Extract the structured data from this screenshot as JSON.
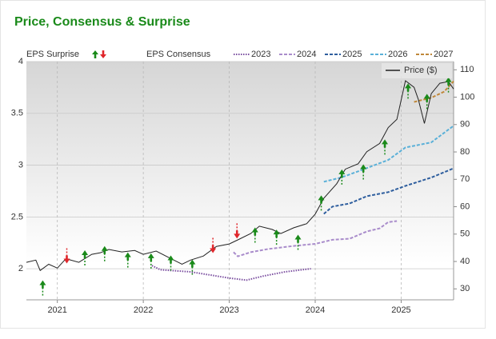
{
  "chart_data": {
    "type": "line",
    "title": "Price, Consensus & Surprise",
    "xlim": [
      2020.64,
      2025.61
    ],
    "xticks": [
      {
        "value": 2021,
        "label": "2021"
      },
      {
        "value": 2022,
        "label": "2022"
      },
      {
        "value": 2023,
        "label": "2023"
      },
      {
        "value": 2024,
        "label": "2024"
      },
      {
        "value": 2025,
        "label": "2025"
      }
    ],
    "ylim": [
      1.7,
      4.0
    ],
    "yticks": [
      2,
      2.5,
      3,
      3.5,
      4
    ],
    "y2lim": [
      26,
      113
    ],
    "y2ticks": [
      30,
      40,
      50,
      60,
      70,
      80,
      90,
      100,
      110
    ],
    "grid": true,
    "series": [
      {
        "name": "Price ($)",
        "color": "#222222",
        "axis": "y2",
        "x": [
          2020.64,
          2020.75,
          2020.8,
          2020.9,
          2021.0,
          2021.1,
          2021.25,
          2021.4,
          2021.5,
          2021.6,
          2021.75,
          2021.9,
          2022.0,
          2022.15,
          2022.3,
          2022.45,
          2022.55,
          2022.7,
          2022.85,
          2023.0,
          2023.1,
          2023.25,
          2023.35,
          2023.5,
          2023.6,
          2023.75,
          2023.9,
          2024.0,
          2024.1,
          2024.25,
          2024.35,
          2024.5,
          2024.6,
          2024.75,
          2024.85,
          2024.95,
          2025.05,
          2025.15,
          2025.2,
          2025.27,
          2025.35,
          2025.45,
          2025.55,
          2025.61
        ],
        "values": [
          39.7,
          40.5,
          36.7,
          39.0,
          37.6,
          41.0,
          39.7,
          42.6,
          43.2,
          44.4,
          43.5,
          44.0,
          42.6,
          43.8,
          41.4,
          39.0,
          40.5,
          42.0,
          45.5,
          46.4,
          47.9,
          50.2,
          52.9,
          51.7,
          50.2,
          52.3,
          53.8,
          57.3,
          63.1,
          68.4,
          73.7,
          75.7,
          80.1,
          83.1,
          88.9,
          91.9,
          106.0,
          103.6,
          99.2,
          90.4,
          101.3,
          105.1,
          105.7,
          103.0
        ]
      }
    ],
    "consensus": {
      "name": "EPS Consensus",
      "series": [
        {
          "name": "2023",
          "color": "#7b4fa0",
          "style": "dotted",
          "x": [
            2022.1,
            2022.2,
            2022.55,
            2023.0,
            2023.2,
            2023.4,
            2023.65,
            2023.95
          ],
          "values": [
            2.03,
            1.99,
            1.97,
            1.91,
            1.89,
            1.93,
            1.97,
            2.0
          ]
        },
        {
          "name": "2024",
          "color": "#a98ccb",
          "style": "dashed",
          "x": [
            2023.05,
            2023.1,
            2023.25,
            2023.45,
            2023.75,
            2024.0,
            2024.2,
            2024.4,
            2024.6,
            2024.75,
            2024.85,
            2024.95
          ],
          "values": [
            2.16,
            2.12,
            2.16,
            2.19,
            2.22,
            2.24,
            2.28,
            2.29,
            2.36,
            2.39,
            2.45,
            2.46
          ]
        },
        {
          "name": "2025",
          "color": "#2e5e9e",
          "style": "dashed",
          "x": [
            2024.1,
            2024.2,
            2024.4,
            2024.6,
            2024.85,
            2025.05,
            2025.35,
            2025.61
          ],
          "values": [
            2.53,
            2.6,
            2.63,
            2.7,
            2.74,
            2.8,
            2.88,
            2.97
          ]
        },
        {
          "name": "2026",
          "color": "#5ab0d8",
          "style": "dashed",
          "x": [
            2024.1,
            2024.3,
            2024.5,
            2024.85,
            2025.05,
            2025.35,
            2025.61
          ],
          "values": [
            2.84,
            2.88,
            2.94,
            3.05,
            3.17,
            3.22,
            3.38
          ]
        },
        {
          "name": "2027",
          "color": "#c0883a",
          "style": "dashed",
          "x": [
            2025.15,
            2025.35,
            2025.5,
            2025.61
          ],
          "values": [
            3.61,
            3.65,
            3.71,
            3.81
          ]
        }
      ]
    },
    "surprise": {
      "name": "EPS Surprise",
      "x": [
        2020.83,
        2021.11,
        2021.32,
        2021.55,
        2021.82,
        2022.09,
        2022.32,
        2022.57,
        2022.81,
        2023.09,
        2023.3,
        2023.55,
        2023.8,
        2024.07,
        2024.31,
        2024.56,
        2024.81,
        2025.08,
        2025.3,
        2025.55
      ],
      "values": [
        1.85,
        2.09,
        2.14,
        2.18,
        2.12,
        2.11,
        2.09,
        2.05,
        2.19,
        2.33,
        2.36,
        2.34,
        2.29,
        2.67,
        2.92,
        2.97,
        3.21,
        3.75,
        3.65,
        3.81
      ],
      "direction": [
        "up",
        "down",
        "up",
        "up",
        "up",
        "up",
        "up",
        "up",
        "down",
        "down",
        "up",
        "up",
        "up",
        "up",
        "up",
        "up",
        "up",
        "up",
        "up",
        "up"
      ],
      "colors": {
        "up": "#1a8a1a",
        "down": "#e0262b"
      }
    }
  }
}
